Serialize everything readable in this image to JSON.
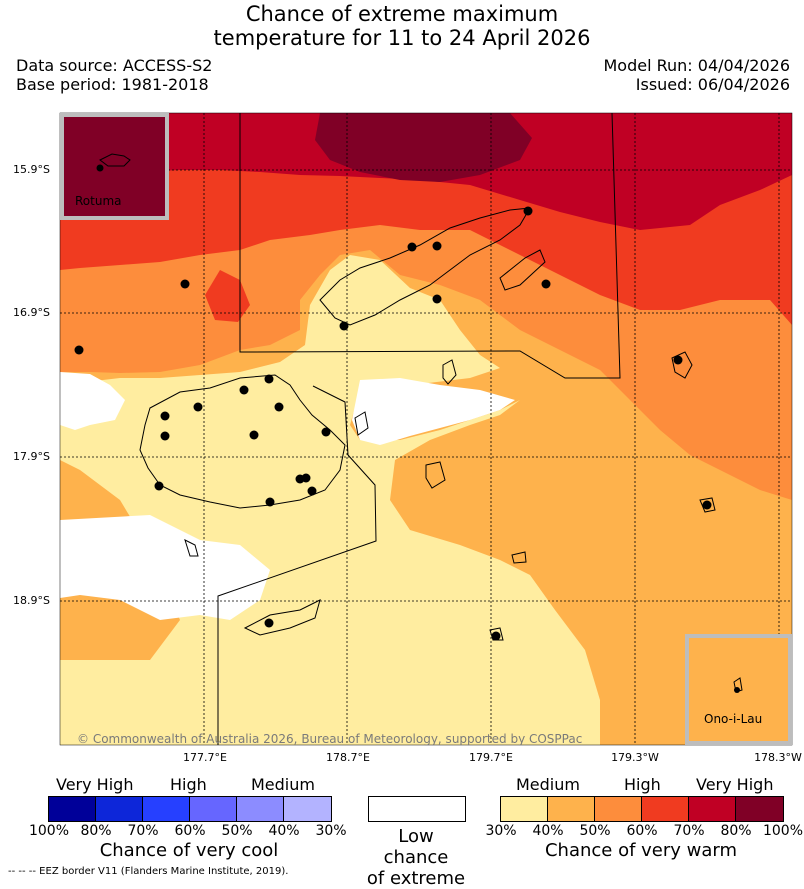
{
  "title": {
    "line1": "Chance of extreme maximum",
    "line2": "temperature for 11 to 24 April 2026"
  },
  "meta": {
    "data_source": "Data source: ACCESS-S2",
    "base_period": "Base period: 1981-2018",
    "model_run": "Model Run: 04/04/2026",
    "issued": "Issued: 06/04/2026"
  },
  "map": {
    "lat_labels": [
      "15.9°S",
      "16.9°S",
      "17.9°S",
      "18.9°S"
    ],
    "lon_labels": [
      "177.7°E",
      "178.7°E",
      "179.7°E",
      "179.3°W",
      "178.3°W"
    ],
    "copyright": "© Commonwealth of Australia 2026, Bureau of Meteorology, supported by COSPPac",
    "inset_rotuma": "Rotuma",
    "inset_ono": "Ono-i-Lau",
    "colors": {
      "warm_30_40": "#ffeda0",
      "warm_40_50": "#feb24c",
      "warm_50_60": "#fd8d3c",
      "warm_60_70": "#f03b20",
      "warm_70_80": "#c00024",
      "warm_80_100": "#800026",
      "low": "#ffffff"
    }
  },
  "legend": {
    "cool": {
      "headings": [
        "Very High",
        "High",
        "Medium"
      ],
      "colors": [
        "#000099",
        "#0d26d9",
        "#2640ff",
        "#6666ff",
        "#8c8cff",
        "#b3b3ff"
      ],
      "ticks": [
        "100%",
        "80%",
        "70%",
        "60%",
        "50%",
        "40%",
        "30%"
      ],
      "caption": "Chance of very cool"
    },
    "low": {
      "line1": "Low chance",
      "line2": "of extreme"
    },
    "warm": {
      "headings": [
        "Medium",
        "High",
        "Very High"
      ],
      "colors": [
        "#ffeda0",
        "#feb24c",
        "#fd8d3c",
        "#f03b20",
        "#c00024",
        "#800026"
      ],
      "ticks": [
        "30%",
        "40%",
        "50%",
        "60%",
        "70%",
        "80%",
        "100%"
      ],
      "caption": "Chance of very warm"
    }
  },
  "footnote": "-- -- -- EEZ border V11 (Flanders Marine Institute, 2019)."
}
